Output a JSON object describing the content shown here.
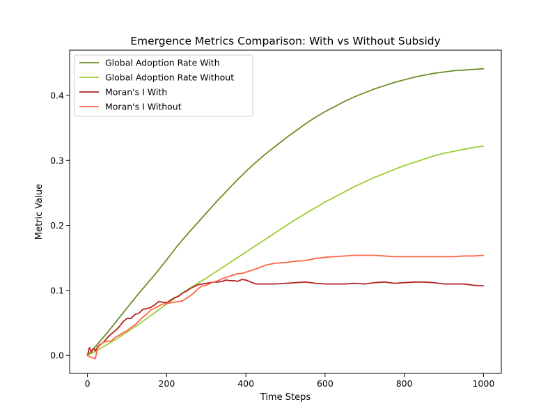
{
  "chart_data": {
    "type": "line",
    "title": "Emergence Metrics Comparison: With vs Without Subsidy",
    "xlabel": "Time Steps",
    "ylabel": "Metric Value",
    "xlim": [
      -45,
      1045
    ],
    "ylim": [
      -0.0276,
      0.4696
    ],
    "xticks": [
      0,
      200,
      400,
      600,
      800,
      1000
    ],
    "xtick_labels": [
      "0",
      "200",
      "400",
      "600",
      "800",
      "1000"
    ],
    "yticks": [
      0.0,
      0.1,
      0.2,
      0.3,
      0.4
    ],
    "ytick_labels": [
      "0.0",
      "0.1",
      "0.2",
      "0.3",
      "0.4"
    ],
    "grid": false,
    "legend_position": "top-left",
    "series": [
      {
        "name": "Global Adoption Rate With",
        "color": "#6b8e23",
        "x": [
          0,
          25,
          50,
          75,
          100,
          125,
          150,
          175,
          200,
          225,
          250,
          275,
          300,
          325,
          350,
          375,
          400,
          425,
          450,
          475,
          500,
          525,
          550,
          575,
          600,
          625,
          650,
          675,
          700,
          725,
          750,
          775,
          800,
          825,
          850,
          875,
          900,
          925,
          950,
          975,
          1000
        ],
        "y": [
          0.0,
          0.017,
          0.035,
          0.054,
          0.073,
          0.092,
          0.11,
          0.128,
          0.147,
          0.167,
          0.185,
          0.202,
          0.219,
          0.236,
          0.252,
          0.268,
          0.283,
          0.297,
          0.31,
          0.322,
          0.334,
          0.345,
          0.356,
          0.366,
          0.375,
          0.383,
          0.391,
          0.398,
          0.404,
          0.41,
          0.415,
          0.42,
          0.424,
          0.428,
          0.431,
          0.434,
          0.436,
          0.438,
          0.439,
          0.44,
          0.441
        ]
      },
      {
        "name": "Global Adoption Rate Without",
        "color": "#9acd32",
        "x": [
          0,
          25,
          50,
          75,
          100,
          125,
          150,
          175,
          200,
          225,
          250,
          275,
          300,
          325,
          350,
          375,
          400,
          425,
          450,
          475,
          500,
          525,
          550,
          575,
          600,
          625,
          650,
          675,
          700,
          725,
          750,
          775,
          800,
          825,
          850,
          875,
          900,
          925,
          950,
          975,
          1000
        ],
        "y": [
          0.0,
          0.008,
          0.017,
          0.026,
          0.036,
          0.046,
          0.057,
          0.068,
          0.079,
          0.09,
          0.1,
          0.11,
          0.119,
          0.129,
          0.139,
          0.149,
          0.159,
          0.169,
          0.179,
          0.189,
          0.199,
          0.209,
          0.218,
          0.227,
          0.236,
          0.244,
          0.252,
          0.26,
          0.267,
          0.274,
          0.28,
          0.286,
          0.292,
          0.297,
          0.302,
          0.307,
          0.311,
          0.314,
          0.317,
          0.32,
          0.322
        ]
      },
      {
        "name": "Moran's I With",
        "color": "#b22222",
        "x": [
          0,
          5,
          10,
          15,
          20,
          25,
          30,
          40,
          50,
          60,
          70,
          80,
          90,
          100,
          110,
          120,
          130,
          140,
          150,
          160,
          170,
          180,
          190,
          200,
          210,
          220,
          230,
          240,
          250,
          260,
          270,
          280,
          290,
          300,
          310,
          320,
          330,
          340,
          350,
          360,
          370,
          380,
          390,
          400,
          425,
          450,
          475,
          500,
          525,
          550,
          575,
          600,
          625,
          650,
          675,
          700,
          725,
          750,
          775,
          800,
          825,
          850,
          875,
          900,
          925,
          950,
          975,
          1000
        ],
        "y": [
          0.0,
          0.012,
          0.005,
          0.011,
          0.007,
          0.013,
          0.016,
          0.02,
          0.027,
          0.033,
          0.038,
          0.044,
          0.052,
          0.057,
          0.057,
          0.063,
          0.065,
          0.071,
          0.072,
          0.074,
          0.078,
          0.083,
          0.082,
          0.081,
          0.085,
          0.089,
          0.091,
          0.096,
          0.099,
          0.103,
          0.106,
          0.109,
          0.11,
          0.111,
          0.112,
          0.113,
          0.113,
          0.114,
          0.116,
          0.115,
          0.115,
          0.114,
          0.117,
          0.116,
          0.11,
          0.11,
          0.11,
          0.111,
          0.112,
          0.113,
          0.111,
          0.11,
          0.11,
          0.11,
          0.111,
          0.11,
          0.112,
          0.113,
          0.111,
          0.112,
          0.113,
          0.113,
          0.112,
          0.11,
          0.11,
          0.11,
          0.108,
          0.107
        ]
      },
      {
        "name": "Moran's I Without",
        "color": "#ff6347",
        "x": [
          0,
          5,
          10,
          15,
          20,
          25,
          30,
          40,
          50,
          60,
          70,
          80,
          90,
          100,
          110,
          120,
          130,
          140,
          150,
          160,
          170,
          180,
          190,
          200,
          210,
          220,
          230,
          240,
          250,
          260,
          270,
          280,
          290,
          300,
          310,
          320,
          330,
          340,
          350,
          360,
          370,
          380,
          390,
          400,
          425,
          450,
          475,
          500,
          525,
          550,
          575,
          600,
          625,
          650,
          675,
          700,
          725,
          750,
          775,
          800,
          825,
          850,
          875,
          900,
          925,
          950,
          975,
          1000
        ],
        "y": [
          0.0,
          -0.002,
          -0.003,
          -0.004,
          -0.005,
          0.011,
          0.015,
          0.02,
          0.022,
          0.022,
          0.028,
          0.031,
          0.035,
          0.038,
          0.043,
          0.047,
          0.053,
          0.059,
          0.064,
          0.07,
          0.073,
          0.076,
          0.079,
          0.08,
          0.081,
          0.082,
          0.083,
          0.084,
          0.088,
          0.092,
          0.097,
          0.103,
          0.107,
          0.108,
          0.111,
          0.113,
          0.115,
          0.118,
          0.12,
          0.122,
          0.124,
          0.126,
          0.126,
          0.128,
          0.133,
          0.139,
          0.142,
          0.143,
          0.145,
          0.146,
          0.149,
          0.151,
          0.152,
          0.153,
          0.154,
          0.154,
          0.154,
          0.153,
          0.152,
          0.152,
          0.152,
          0.152,
          0.152,
          0.152,
          0.152,
          0.153,
          0.153,
          0.154
        ]
      }
    ]
  }
}
